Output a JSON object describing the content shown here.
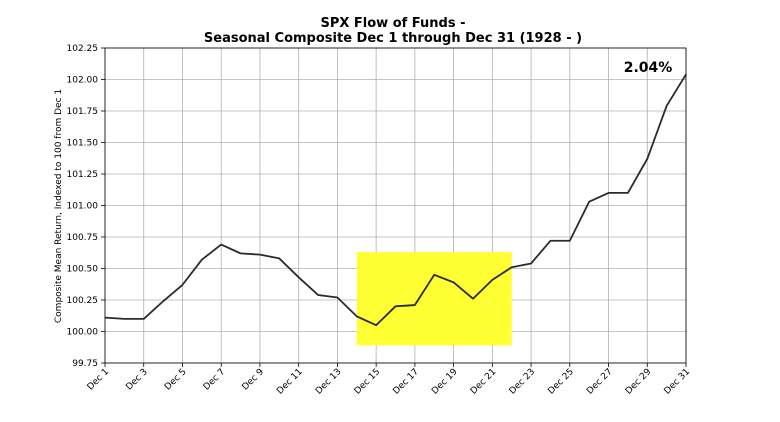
{
  "chart_data": {
    "type": "line",
    "title": "SPX Flow of Funds -",
    "subtitle": "Seasonal Composite Dec 1 through Dec 31 (1928 - )",
    "xlabel": "",
    "ylabel": "Composite Mean Return, Indexed to 100 from Dec 1",
    "x": [
      1,
      2,
      3,
      4,
      5,
      6,
      7,
      8,
      9,
      10,
      11,
      12,
      13,
      14,
      15,
      16,
      17,
      18,
      19,
      20,
      21,
      22,
      23,
      24,
      25,
      26,
      27,
      28,
      29,
      30,
      31
    ],
    "series": [
      {
        "name": "Composite",
        "color": "#2b2b2b",
        "values": [
          100.11,
          100.1,
          100.1,
          100.24,
          100.37,
          100.57,
          100.69,
          100.62,
          100.61,
          100.58,
          100.43,
          100.29,
          100.27,
          100.12,
          100.05,
          100.2,
          100.21,
          100.45,
          100.39,
          100.26,
          100.41,
          100.51,
          100.54,
          100.72,
          100.72,
          101.03,
          101.1,
          101.1,
          101.37,
          101.79,
          102.04
        ]
      }
    ],
    "xlim": [
      1,
      31
    ],
    "ylim": [
      99.75,
      102.25
    ],
    "yticks": [
      "99.75",
      "100.00",
      "100.25",
      "100.50",
      "100.75",
      "101.00",
      "101.25",
      "101.50",
      "101.75",
      "102.00",
      "102.25"
    ],
    "xticks": [
      {
        "x": 1,
        "label": "Dec 1"
      },
      {
        "x": 3,
        "label": "Dec 3"
      },
      {
        "x": 5,
        "label": "Dec 5"
      },
      {
        "x": 7,
        "label": "Dec 7"
      },
      {
        "x": 9,
        "label": "Dec 9"
      },
      {
        "x": 11,
        "label": "Dec 11"
      },
      {
        "x": 13,
        "label": "Dec 13"
      },
      {
        "x": 15,
        "label": "Dec 15"
      },
      {
        "x": 17,
        "label": "Dec 17"
      },
      {
        "x": 19,
        "label": "Dec 19"
      },
      {
        "x": 21,
        "label": "Dec 21"
      },
      {
        "x": 23,
        "label": "Dec 23"
      },
      {
        "x": 25,
        "label": "Dec 25"
      },
      {
        "x": 27,
        "label": "Dec 27"
      },
      {
        "x": 29,
        "label": "Dec 29"
      },
      {
        "x": 31,
        "label": "Dec 31"
      }
    ],
    "grid": true,
    "highlight": {
      "x_start": 14,
      "x_end": 22,
      "y_start": 99.89,
      "y_end": 100.63,
      "color": "#ffff33"
    },
    "annotation": {
      "text": "2.04%",
      "x": 29,
      "y": 102.1
    }
  }
}
